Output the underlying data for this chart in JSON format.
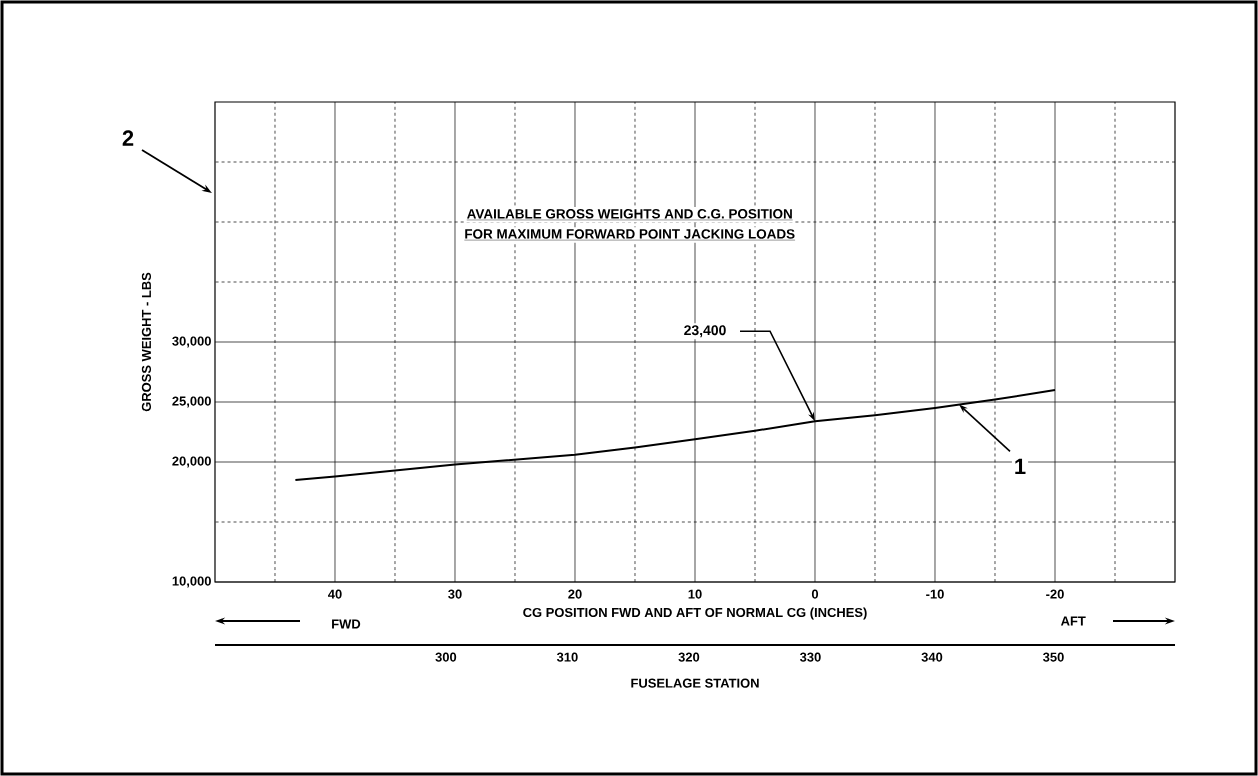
{
  "chart_data": {
    "type": "line",
    "title": "AVAILABLE GROSS WEIGHTS AND C.G. POSITION",
    "subtitle": "FOR MAXIMUM FORWARD POINT JACKING LOADS",
    "xlabel": "CG POSITION FWD AND AFT OF NORMAL CG (INCHES)",
    "ylabel": "GROSS WEIGHT - LBS",
    "x2label": "FUSELAGE STATION",
    "x": [
      43.3,
      40,
      35,
      30,
      25,
      20,
      15,
      10,
      5,
      0,
      -5,
      -10,
      -15,
      -20
    ],
    "values": [
      18500,
      18800,
      19300,
      19800,
      20200,
      20600,
      21200,
      21900,
      22600,
      23400,
      23900,
      24500,
      25200,
      26000
    ],
    "color": "#000000",
    "marker": "none",
    "line_style": "solid",
    "grid": true,
    "xlim": [
      50,
      -30
    ],
    "ylim": [
      10000,
      50000
    ],
    "x2lim": [
      281,
      360
    ],
    "xticks": [
      {
        "value": 45,
        "label": null
      },
      40,
      {
        "value": 35,
        "label": null
      },
      30,
      {
        "value": 25,
        "label": null
      },
      20,
      {
        "value": 15,
        "label": null
      },
      10,
      {
        "value": 5,
        "label": null
      },
      0,
      {
        "value": -5,
        "label": null
      },
      -10,
      {
        "value": -15,
        "label": null
      },
      -20,
      {
        "value": -25,
        "label": null
      }
    ],
    "yticks": [
      {
        "value": 10000,
        "label": "10,000"
      },
      {
        "value": 15000,
        "label": null
      },
      {
        "value": 20000,
        "label": "20,000"
      },
      {
        "value": 25000,
        "label": "25,000"
      },
      {
        "value": 30000,
        "label": "30,000"
      },
      {
        "value": 35000,
        "label": null
      },
      {
        "value": 40000,
        "label": null
      },
      {
        "value": 45000,
        "label": null
      }
    ],
    "x2ticks": [
      300,
      310,
      320,
      330,
      340,
      350
    ],
    "annotations": [
      {
        "text": "23,400",
        "x": 0,
        "y": 23400
      },
      {
        "text": "1",
        "x": -12,
        "y": 24800
      },
      "2",
      "FWD",
      "AFT"
    ]
  }
}
